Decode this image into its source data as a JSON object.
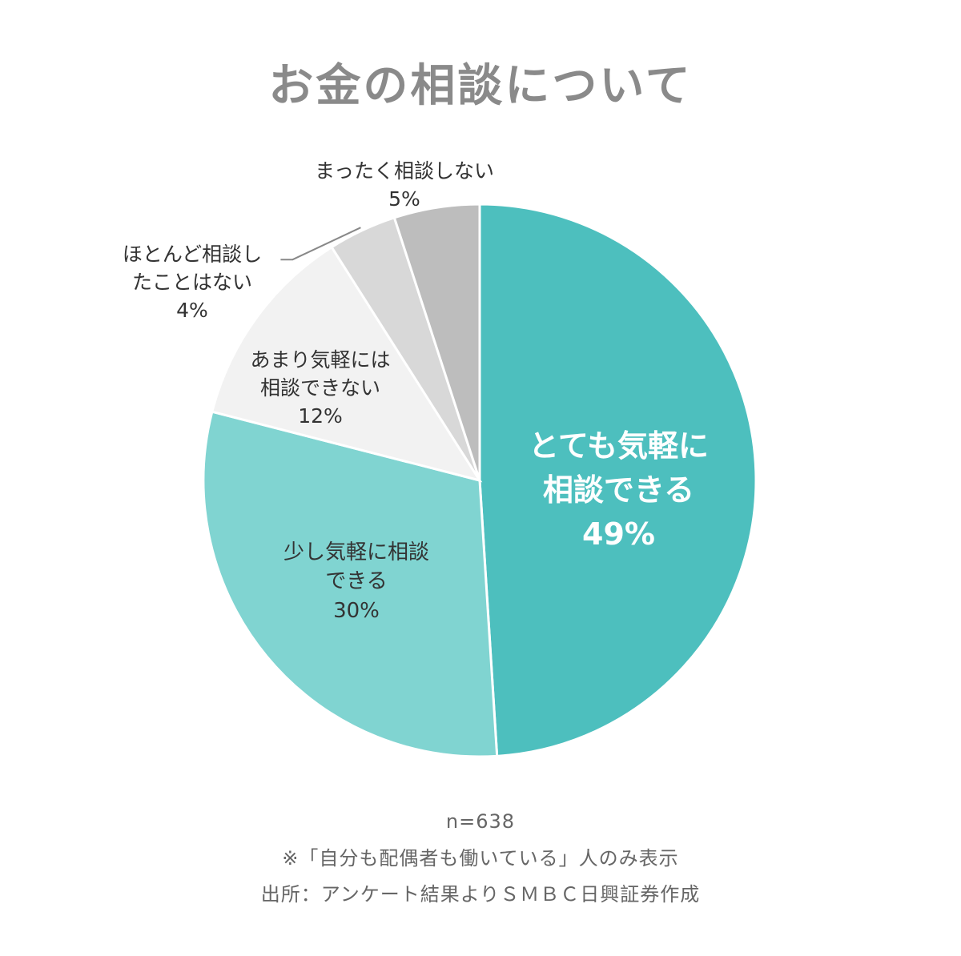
{
  "title": "お金の相談について",
  "chart_data": {
    "type": "pie",
    "title": "お金の相談について",
    "slices": [
      {
        "name": "とても気軽に相談できる",
        "lines": [
          "とても気軽に",
          "相談できる"
        ],
        "value": 49,
        "label": "49%",
        "color": "#4dbfbe"
      },
      {
        "name": "少し気軽に相談できる",
        "lines": [
          "少し気軽に相談",
          "できる"
        ],
        "value": 30,
        "label": "30%",
        "color": "#80d4d1"
      },
      {
        "name": "あまり気軽には相談できない",
        "lines": [
          "あまり気軽には",
          "相談できない"
        ],
        "value": 12,
        "label": "12%",
        "color": "#f2f2f2"
      },
      {
        "name": "ほとんど相談したことはない",
        "lines": [
          "ほとんど相談し",
          "たことはない"
        ],
        "value": 4,
        "label": "4%",
        "color": "#d8d8d8"
      },
      {
        "name": "まったく相談しない",
        "lines": [
          "まったく相談しない"
        ],
        "value": 5,
        "label": "5%",
        "color": "#bdbdbd"
      }
    ]
  },
  "notes": {
    "n": "n=638",
    "scope": "※「自分も配偶者も働いている」人のみ表示",
    "source": "出所：アンケート結果よりＳＭＢＣ日興証券作成"
  }
}
